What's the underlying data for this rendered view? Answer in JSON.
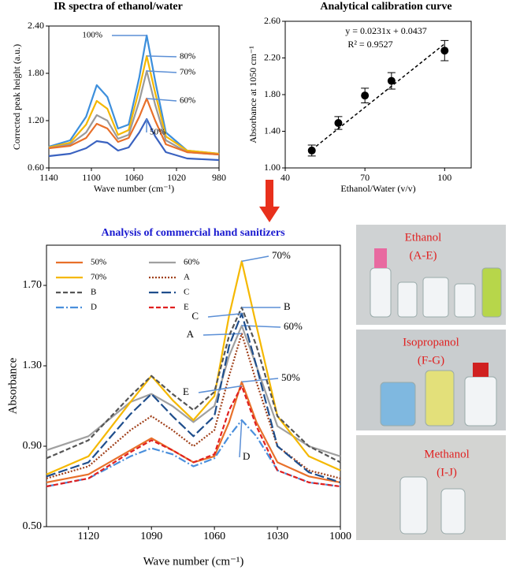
{
  "chart_data": [
    {
      "type": "line",
      "title": "IR spectra of ethanol/water",
      "x_label": "Wave number (cm⁻¹)",
      "y_label": "Corrected peak height (a.u.)",
      "x": [
        1140,
        1120,
        1105,
        1095,
        1085,
        1075,
        1065,
        1055,
        1048,
        1040,
        1030,
        1010,
        980
      ],
      "xlim": [
        1140,
        980
      ],
      "xticks": [
        1140,
        1100,
        1060,
        1020,
        980
      ],
      "ylim": [
        0.6,
        2.4
      ],
      "yticks": [
        {
          "value": 0.6,
          "label": "0.60"
        },
        {
          "value": 1.2,
          "label": "1.20"
        },
        {
          "value": 1.8,
          "label": "1.80"
        },
        {
          "value": 2.4,
          "label": "2.40"
        }
      ],
      "legend": false,
      "series": [
        {
          "name": "100%",
          "color": "#3d8fdc",
          "style": "solid",
          "values": [
            0.87,
            0.95,
            1.25,
            1.65,
            1.5,
            1.1,
            1.15,
            1.75,
            2.28,
            1.7,
            1.05,
            0.82,
            0.78
          ]
        },
        {
          "name": "80%",
          "color": "#f5b800",
          "style": "solid",
          "values": [
            0.86,
            0.92,
            1.15,
            1.45,
            1.35,
            1.02,
            1.08,
            1.6,
            2.02,
            1.55,
            1.0,
            0.82,
            0.78
          ]
        },
        {
          "name": "70%",
          "color": "#9a9a9a",
          "style": "solid",
          "values": [
            0.85,
            0.9,
            1.05,
            1.27,
            1.2,
            0.97,
            1.02,
            1.45,
            1.83,
            1.4,
            0.95,
            0.8,
            0.77
          ]
        },
        {
          "name": "60%",
          "color": "#e8702a",
          "style": "solid",
          "values": [
            0.85,
            0.88,
            0.98,
            1.16,
            1.1,
            0.93,
            0.98,
            1.25,
            1.48,
            1.2,
            0.9,
            0.8,
            0.77
          ]
        },
        {
          "name": "50%",
          "color": "#3a62c0",
          "style": "solid",
          "values": [
            0.75,
            0.78,
            0.85,
            0.94,
            0.92,
            0.82,
            0.86,
            1.05,
            1.22,
            1.0,
            0.8,
            0.72,
            0.7
          ]
        }
      ]
    },
    {
      "type": "scatter",
      "title": "Analytical calibration curve",
      "x_label": "Ethanol/Water (v/v)",
      "y_label": "Absorbance at 1050 cm⁻¹",
      "x": [
        50,
        60,
        70,
        80,
        100
      ],
      "values": [
        1.19,
        1.49,
        1.79,
        1.95,
        2.28
      ],
      "errors": [
        0.06,
        0.07,
        0.08,
        0.09,
        0.11
      ],
      "color": "#000000",
      "xlim": [
        40,
        110
      ],
      "xticks": [
        40,
        70,
        100
      ],
      "ylim": [
        1.0,
        2.6
      ],
      "yticks": [
        {
          "value": 1.0,
          "label": "1.00"
        },
        {
          "value": 1.4,
          "label": "1.40"
        },
        {
          "value": 1.8,
          "label": "1.80"
        },
        {
          "value": 2.2,
          "label": "2.20"
        },
        {
          "value": 2.6,
          "label": "2.60"
        }
      ],
      "fit": {
        "slope": 0.0231,
        "intercept": 0.0437,
        "equation": "y = 0.0231x + 0.0437",
        "r_squared": "R² = 0.9527"
      }
    },
    {
      "type": "line",
      "title": "Analysis of commercial hand sanitizers",
      "x_label": "Wave number (cm⁻¹)",
      "y_label": "Absorbance",
      "x": [
        1140,
        1120,
        1100,
        1090,
        1080,
        1070,
        1060,
        1053,
        1047,
        1040,
        1030,
        1015,
        1000
      ],
      "xlim": [
        1140,
        1000
      ],
      "xticks": [
        1120,
        1090,
        1060,
        1030,
        1000
      ],
      "ylim": [
        0.5,
        1.9
      ],
      "yticks": [
        {
          "value": 0.5,
          "label": "0.50"
        },
        {
          "value": 0.9,
          "label": "0.90"
        },
        {
          "value": 1.3,
          "label": "1.30"
        },
        {
          "value": 1.7,
          "label": "1.70"
        }
      ],
      "legend": "upper left",
      "series": [
        {
          "name": "50%",
          "color": "#e8702a",
          "style": "solid",
          "values": [
            0.72,
            0.76,
            0.88,
            0.94,
            0.88,
            0.82,
            0.85,
            1.02,
            1.22,
            1.02,
            0.82,
            0.75,
            0.72
          ]
        },
        {
          "name": "60%",
          "color": "#a0a0a0",
          "style": "solid",
          "values": [
            0.88,
            0.95,
            1.12,
            1.16,
            1.1,
            1.02,
            1.1,
            1.35,
            1.5,
            1.3,
            1.0,
            0.9,
            0.85
          ]
        },
        {
          "name": "70%",
          "color": "#f5b800",
          "style": "solid",
          "values": [
            0.76,
            0.85,
            1.12,
            1.25,
            1.13,
            1.03,
            1.15,
            1.55,
            1.82,
            1.5,
            1.05,
            0.85,
            0.78
          ]
        },
        {
          "name": "A",
          "color": "#a0401a",
          "style": "dotted",
          "values": [
            0.74,
            0.8,
            0.98,
            1.05,
            0.98,
            0.9,
            0.98,
            1.25,
            1.46,
            1.22,
            0.9,
            0.78,
            0.74
          ]
        },
        {
          "name": "B",
          "color": "#555555",
          "style": "dashed",
          "values": [
            0.84,
            0.93,
            1.15,
            1.25,
            1.16,
            1.08,
            1.17,
            1.45,
            1.59,
            1.4,
            1.05,
            0.9,
            0.82
          ]
        },
        {
          "name": "C",
          "color": "#1f4e8c",
          "style": "long-dash",
          "values": [
            0.75,
            0.82,
            1.06,
            1.16,
            1.05,
            0.95,
            1.05,
            1.4,
            1.56,
            1.3,
            0.9,
            0.77,
            0.72
          ]
        },
        {
          "name": "D",
          "color": "#4a8fdc",
          "style": "dash-dot",
          "values": [
            0.7,
            0.74,
            0.85,
            0.89,
            0.86,
            0.8,
            0.84,
            0.95,
            1.03,
            0.95,
            0.78,
            0.72,
            0.7
          ]
        },
        {
          "name": "E",
          "color": "#e02020",
          "style": "dashed",
          "values": [
            0.7,
            0.74,
            0.87,
            0.93,
            0.88,
            0.82,
            0.86,
            1.08,
            1.2,
            1.0,
            0.78,
            0.72,
            0.7
          ]
        }
      ]
    }
  ],
  "photos": [
    {
      "label": "Ethanol",
      "group": "(A-E)"
    },
    {
      "label": "Isopropanol",
      "group": "(F-G)"
    },
    {
      "label": "Methanol",
      "group": "(I-J)"
    }
  ]
}
